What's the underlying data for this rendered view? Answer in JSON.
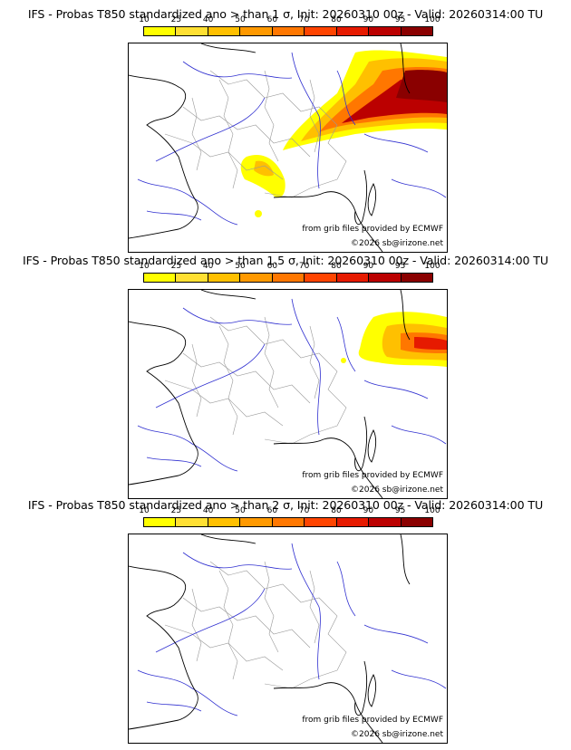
{
  "colorbar": {
    "ticks": [
      "10",
      "25",
      "40",
      "50",
      "60",
      "70",
      "80",
      "90",
      "95",
      "100"
    ],
    "colors": [
      "#ffff00",
      "#ffe033",
      "#ffc000",
      "#ff9900",
      "#ff7700",
      "#ff4400",
      "#e61a00",
      "#bb0000",
      "#8a0000"
    ]
  },
  "panels": [
    {
      "title": "IFS - Probas T850  standardized ano > than 1 σ, Init: 20260310 00z - Valid: 20260314:00 TU",
      "credit": "from grib files provided by ECMWF",
      "copyright": "©2026 sb@irizone.net"
    },
    {
      "title": "IFS - Probas T850  standardized ano > than 1.5 σ, Init: 20260310 00z - Valid: 20260314:00 TU",
      "credit": "from grib files provided by ECMWF",
      "copyright": "©2026 sb@irizone.net"
    },
    {
      "title": "IFS - Probas T850  standardized ano > than 2 σ, Init: 20260310 00z - Valid: 20260314:00 TU",
      "credit": "from grib files provided by ECMWF",
      "copyright": "©2026 sb@irizone.net"
    }
  ]
}
